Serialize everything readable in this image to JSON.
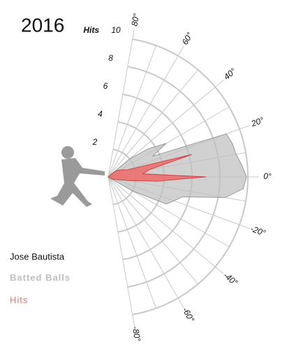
{
  "chart_data": {
    "type": "polar-area",
    "title": "2016",
    "player": "Jose Bautista",
    "r_axis_label": "Hits",
    "rlim": [
      0,
      10
    ],
    "rticks": [
      2,
      4,
      6,
      8,
      10
    ],
    "anglelim": [
      -80,
      80
    ],
    "angleticks": [
      {
        "value": 80,
        "label": "80°"
      },
      {
        "value": 60,
        "label": "60°"
      },
      {
        "value": 40,
        "label": "40°"
      },
      {
        "value": 20,
        "label": "20°"
      },
      {
        "value": 0,
        "label": "0°"
      },
      {
        "value": -20,
        "label": "-20°"
      },
      {
        "value": -40,
        "label": "-40°"
      },
      {
        "value": -60,
        "label": "-60°"
      },
      {
        "value": -80,
        "label": "-80°"
      }
    ],
    "angle_minor_ticks": [
      70,
      50,
      30,
      10,
      -10,
      -30,
      -50,
      -70
    ],
    "x": [
      40,
      35,
      30,
      25,
      20,
      15,
      10,
      5,
      0,
      -5,
      -10,
      -15,
      -20,
      -25,
      -30
    ],
    "series": [
      {
        "name": "Batted Balls",
        "color": "#bdbdbd",
        "values": [
          2.0,
          3.5,
          4.8,
          3.5,
          9.0,
          9.2,
          9.3,
          9.6,
          9.9,
          9.7,
          8.5,
          5.5,
          5.0,
          4.6,
          2.0
        ]
      },
      {
        "name": "Hits",
        "color": "#ef6b6b",
        "values": [
          0.5,
          0.8,
          1.0,
          1.2,
          1.5,
          6.2,
          3.0,
          2.5,
          7.0,
          3.5,
          1.5,
          0.8,
          0.5,
          0.4,
          0.3
        ]
      }
    ]
  }
}
